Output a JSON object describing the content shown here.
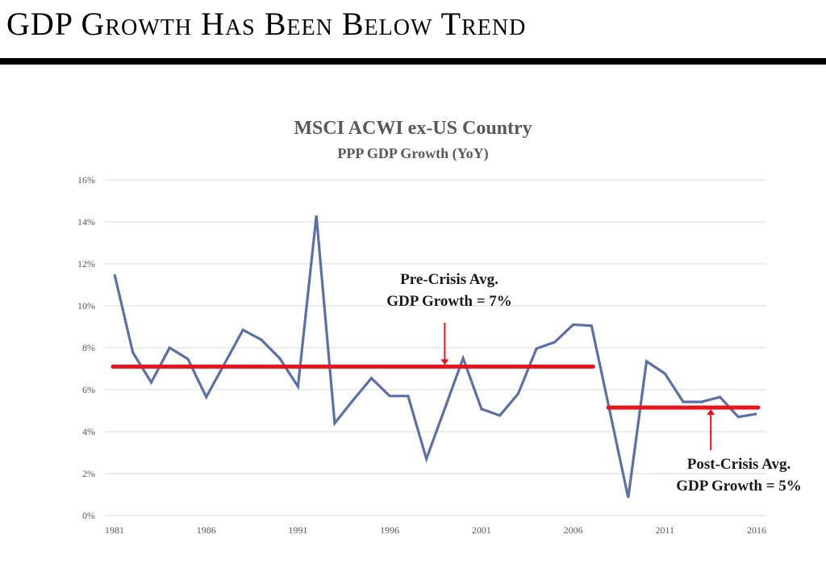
{
  "slide": {
    "title": "GDP Growth Has Been Below Trend"
  },
  "chart_data": {
    "type": "line",
    "title": "MSCI ACWI ex-US Country",
    "subtitle": "PPP GDP Growth (YoY)",
    "xlabel": "",
    "ylabel": "",
    "x": [
      1981,
      1982,
      1983,
      1984,
      1985,
      1986,
      1987,
      1988,
      1989,
      1990,
      1991,
      1992,
      1993,
      1994,
      1995,
      1996,
      1997,
      1998,
      1999,
      2000,
      2001,
      2002,
      2003,
      2004,
      2005,
      2006,
      2007,
      2008,
      2009,
      2010,
      2011,
      2012,
      2013,
      2014,
      2015,
      2016
    ],
    "series": [
      {
        "name": "PPP GDP Growth (YoY)",
        "color": "#5b6fa8",
        "values": [
          11.5,
          7.77,
          6.35,
          8.0,
          7.46,
          5.65,
          7.25,
          8.85,
          8.38,
          7.5,
          6.15,
          14.3,
          4.4,
          5.5,
          6.55,
          5.7,
          5.7,
          2.7,
          5.1,
          7.5,
          5.08,
          4.77,
          5.8,
          7.96,
          8.27,
          9.1,
          9.05,
          4.95,
          0.85,
          7.35,
          6.77,
          5.42,
          5.42,
          5.65,
          4.7,
          4.85
        ]
      }
    ],
    "xticks": [
      "1981",
      "1986",
      "1991",
      "1996",
      "2001",
      "2006",
      "2011",
      "2016"
    ],
    "xtick_values": [
      1981,
      1986,
      1991,
      1996,
      2001,
      2006,
      2011,
      2016
    ],
    "yticks": [
      "0%",
      "2%",
      "4%",
      "6%",
      "8%",
      "10%",
      "12%",
      "14%",
      "16%"
    ],
    "ytick_values": [
      0,
      2,
      4,
      6,
      8,
      10,
      12,
      14,
      16
    ],
    "xlim": [
      1981,
      2016
    ],
    "ylim": [
      0,
      16
    ],
    "grid": true,
    "reference_lines": [
      {
        "name": "pre-crisis-average",
        "value": 7.1,
        "x_start": 1981,
        "x_end": 2007,
        "color": "#e8141c"
      },
      {
        "name": "post-crisis-average",
        "value": 5.15,
        "x_start": 2008,
        "x_end": 2016,
        "color": "#e8141c"
      }
    ],
    "annotations": [
      {
        "name": "pre-crisis-label",
        "lines": [
          "Pre-Crisis Avg.",
          "GDP Growth = 7%"
        ],
        "arrow_x": 1999,
        "arrow_direction": "down"
      },
      {
        "name": "post-crisis-label",
        "lines": [
          "Post-Crisis Avg.",
          "GDP Growth = 5%"
        ],
        "arrow_x": 2013.5,
        "arrow_direction": "up"
      }
    ]
  }
}
